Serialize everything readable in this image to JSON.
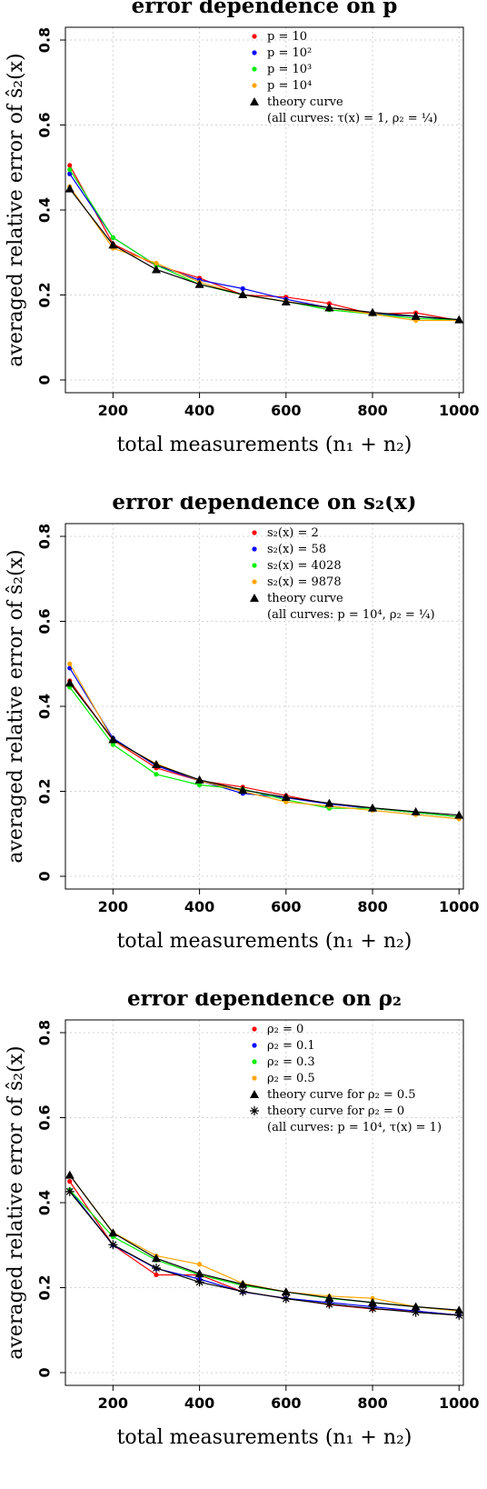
{
  "chart_data": [
    {
      "type": "line",
      "title": "error dependence on p",
      "xlabel": "total measurements (n₁ + n₂)",
      "ylabel": "averaged relative error of ŝ₂(x)",
      "xlim": [
        90,
        1010
      ],
      "ylim": [
        -0.03,
        0.83
      ],
      "xticks": [
        "200",
        "400",
        "600",
        "800",
        "1000"
      ],
      "yticks": [
        "0",
        "0.2",
        "0.4",
        "0.6",
        "0.8"
      ],
      "grid": true,
      "legend_position": "top-right",
      "legend_note": "(all curves: τ(x) = 1, ρ₂ = ¼)",
      "x": [
        100,
        200,
        300,
        400,
        500,
        600,
        700,
        800,
        900,
        1000
      ],
      "series": [
        {
          "name": "p = 10",
          "color": "#ff0000",
          "marker": "dot",
          "values": [
            0.505,
            0.32,
            0.27,
            0.24,
            0.2,
            0.195,
            0.18,
            0.155,
            0.158,
            0.14
          ]
        },
        {
          "name": "p = 10²",
          "color": "#0000ff",
          "marker": "dot",
          "values": [
            0.485,
            0.335,
            0.27,
            0.235,
            0.215,
            0.19,
            0.17,
            0.155,
            0.15,
            0.14
          ]
        },
        {
          "name": "p = 10³",
          "color": "#00ee00",
          "marker": "dot",
          "values": [
            0.495,
            0.335,
            0.27,
            0.225,
            0.2,
            0.185,
            0.165,
            0.155,
            0.145,
            0.14
          ]
        },
        {
          "name": "p = 10⁴",
          "color": "#ffa500",
          "marker": "dot",
          "values": [
            0.455,
            0.31,
            0.275,
            0.23,
            0.2,
            0.185,
            0.17,
            0.155,
            0.14,
            0.14
          ]
        },
        {
          "name": "theory curve",
          "color": "#000000",
          "marker": "triangle",
          "values": [
            0.45,
            0.318,
            0.26,
            0.225,
            0.201,
            0.184,
            0.17,
            0.159,
            0.15,
            0.142
          ]
        }
      ]
    },
    {
      "type": "line",
      "title": "error dependence on s₂(x)",
      "xlabel": "total measurements (n₁ + n₂)",
      "ylabel": "averaged relative error of ŝ₂(x)",
      "xlim": [
        90,
        1010
      ],
      "ylim": [
        -0.03,
        0.83
      ],
      "xticks": [
        "200",
        "400",
        "600",
        "800",
        "1000"
      ],
      "yticks": [
        "0",
        "0.2",
        "0.4",
        "0.6",
        "0.8"
      ],
      "grid": true,
      "legend_position": "top-right",
      "legend_note": "(all curves: p = 10⁴, ρ₂ = ¼)",
      "x": [
        100,
        200,
        300,
        400,
        500,
        600,
        700,
        800,
        900,
        1000
      ],
      "series": [
        {
          "name": "s₂(x) = 2",
          "color": "#ff0000",
          "marker": "dot",
          "values": [
            0.46,
            0.32,
            0.255,
            0.225,
            0.21,
            0.19,
            0.17,
            0.16,
            0.15,
            0.14
          ]
        },
        {
          "name": "s₂(x) = 58",
          "color": "#0000ff",
          "marker": "dot",
          "values": [
            0.49,
            0.325,
            0.26,
            0.225,
            0.195,
            0.185,
            0.17,
            0.16,
            0.15,
            0.14
          ]
        },
        {
          "name": "s₂(x) = 4028",
          "color": "#00ee00",
          "marker": "dot",
          "values": [
            0.445,
            0.31,
            0.24,
            0.215,
            0.205,
            0.18,
            0.16,
            0.16,
            0.15,
            0.14
          ]
        },
        {
          "name": "s₂(x) = 9878",
          "color": "#ffa500",
          "marker": "dot",
          "values": [
            0.5,
            0.32,
            0.265,
            0.225,
            0.2,
            0.175,
            0.165,
            0.155,
            0.145,
            0.135
          ]
        },
        {
          "name": "theory curve",
          "color": "#000000",
          "marker": "triangle",
          "values": [
            0.455,
            0.322,
            0.263,
            0.227,
            0.203,
            0.186,
            0.172,
            0.161,
            0.152,
            0.144
          ]
        }
      ]
    },
    {
      "type": "line",
      "title": "error dependence on ρ₂",
      "xlabel": "total measurements (n₁ + n₂)",
      "ylabel": "averaged relative error of ŝ₂(x)",
      "xlim": [
        90,
        1010
      ],
      "ylim": [
        -0.03,
        0.83
      ],
      "xticks": [
        "200",
        "400",
        "600",
        "800",
        "1000"
      ],
      "yticks": [
        "0",
        "0.2",
        "0.4",
        "0.6",
        "0.8"
      ],
      "grid": true,
      "legend_position": "top-right",
      "legend_note": "(all curves: p = 10⁴, τ(x) = 1)",
      "x": [
        100,
        200,
        300,
        400,
        500,
        600,
        700,
        800,
        900,
        1000
      ],
      "series": [
        {
          "name": "ρ₂ = 0",
          "color": "#ff0000",
          "marker": "dot",
          "values": [
            0.45,
            0.3,
            0.23,
            0.23,
            0.19,
            0.175,
            0.16,
            0.15,
            0.145,
            0.135
          ]
        },
        {
          "name": "ρ₂ = 0.1",
          "color": "#0000ff",
          "marker": "dot",
          "values": [
            0.43,
            0.3,
            0.245,
            0.22,
            0.19,
            0.175,
            0.165,
            0.155,
            0.145,
            0.135
          ]
        },
        {
          "name": "ρ₂ = 0.3",
          "color": "#00ee00",
          "marker": "dot",
          "values": [
            0.43,
            0.32,
            0.265,
            0.23,
            0.205,
            0.19,
            0.175,
            0.165,
            0.155,
            0.145
          ]
        },
        {
          "name": "ρ₂ = 0.5",
          "color": "#ffa500",
          "marker": "dot",
          "values": [
            0.465,
            0.33,
            0.275,
            0.255,
            0.21,
            0.19,
            0.18,
            0.175,
            0.155,
            0.145
          ]
        },
        {
          "name": "theory curve for ρ₂ = 0.5",
          "color": "#000000",
          "marker": "triangle",
          "values": [
            0.465,
            0.329,
            0.269,
            0.233,
            0.208,
            0.19,
            0.176,
            0.165,
            0.155,
            0.147
          ]
        },
        {
          "name": "theory curve for ρ₂ = 0",
          "color": "#000000",
          "marker": "asterisk",
          "values": [
            0.426,
            0.301,
            0.246,
            0.213,
            0.191,
            0.174,
            0.161,
            0.151,
            0.142,
            0.135
          ]
        }
      ]
    }
  ]
}
